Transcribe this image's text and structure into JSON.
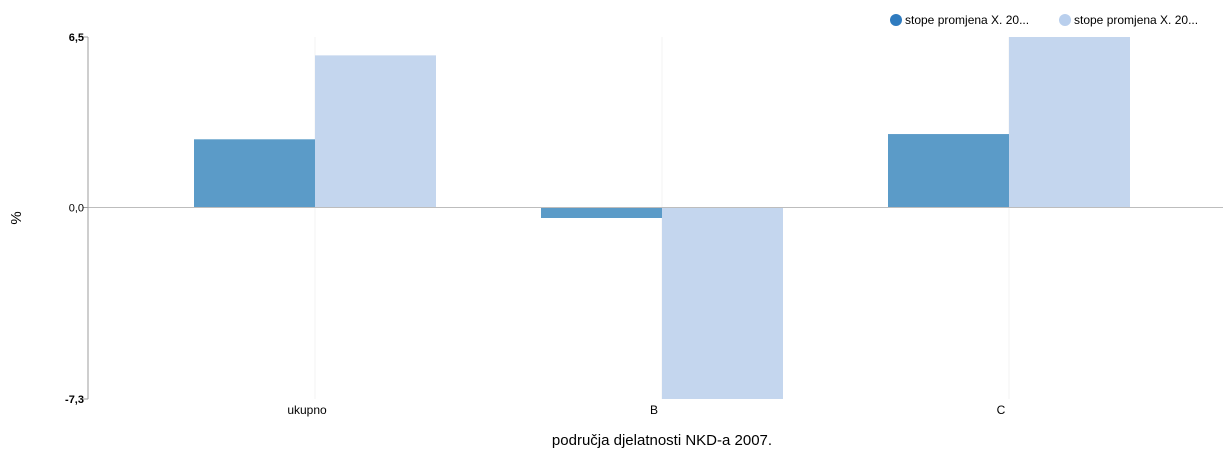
{
  "chart_data": {
    "type": "bar",
    "categories": [
      "ukupno",
      "B",
      "C"
    ],
    "series": [
      {
        "name": "stope promjena X. 20...",
        "color": "#5b9bc8",
        "legend_color": "#2f7bbf",
        "values": [
          2.6,
          -0.4,
          2.8
        ]
      },
      {
        "name": "stope promjena X. 20...",
        "color": "#c4d6ee",
        "legend_color": "#b9cfed",
        "values": [
          5.8,
          -7.3,
          6.5
        ]
      }
    ],
    "xlabel": "područja djelatnosti NKD-a 2007.",
    "ylabel": "%",
    "ylim": [
      -7.3,
      6.5
    ],
    "yticks": [
      "6,5",
      "0,0",
      "-7,3"
    ],
    "legend_position": "top-right",
    "grid": false
  }
}
